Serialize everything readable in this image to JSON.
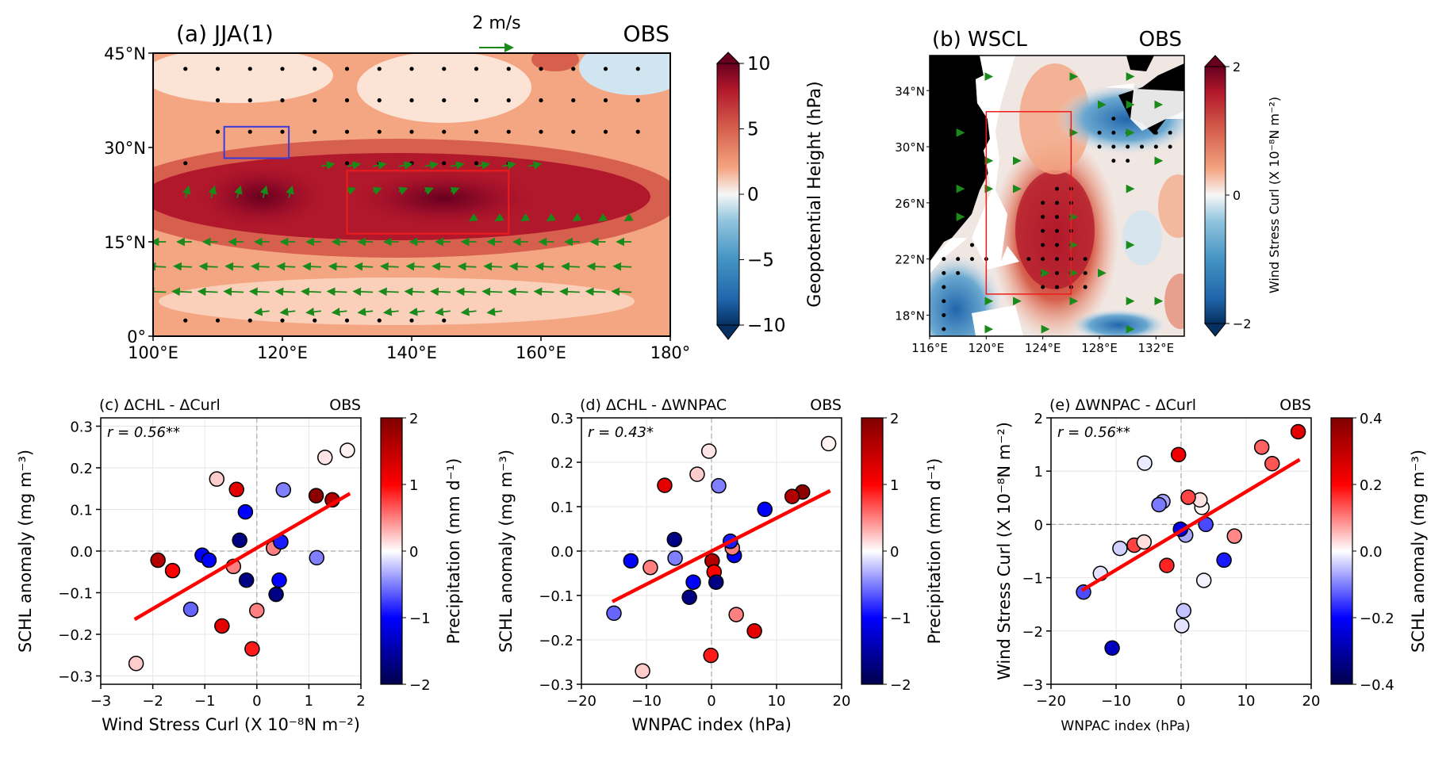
{
  "chart_data": [
    {
      "id": "a",
      "type": "heatmap",
      "title": "(a) JJA(1)",
      "title_right": "OBS",
      "description": "Geopotential height anomaly map with wind vectors and stippling",
      "quiver_key": "2 m/s",
      "xlim": [
        100,
        180
      ],
      "ylim": [
        0,
        45
      ],
      "xticks": [
        "100°E",
        "120°E",
        "140°E",
        "160°E",
        "180°"
      ],
      "xtick_values": [
        100,
        120,
        140,
        160,
        180
      ],
      "yticks": [
        "0°",
        "15°N",
        "30°N",
        "45°N"
      ],
      "ytick_values": [
        0,
        15,
        30,
        45
      ],
      "boxes": [
        {
          "name": "blue-box",
          "color": "#3b3bd9",
          "lon": [
            111,
            121
          ],
          "lat": [
            28.3,
            33.3
          ]
        },
        {
          "name": "red-box",
          "color": "#ee1c1c",
          "lon": [
            130,
            155
          ],
          "lat": [
            16.3,
            26.3
          ]
        }
      ],
      "field_maxima": [
        {
          "lon": 117,
          "lat": 21,
          "value": 10
        },
        {
          "lon": 143,
          "lat": 21,
          "value": 10
        }
      ],
      "colorbar": {
        "label": "Geopotential Height (hPa)",
        "ticks": [
          "10",
          "5",
          "0",
          "−5",
          "−10"
        ],
        "tick_values": [
          10,
          5,
          0,
          -5,
          -10
        ],
        "range": [
          -10,
          10
        ],
        "cmap": "RdBu_r"
      }
    },
    {
      "id": "b",
      "type": "heatmap",
      "title": "(b) WSCL",
      "title_right": "OBS",
      "xlim": [
        116,
        134
      ],
      "ylim": [
        16.5,
        36.5
      ],
      "xticks": [
        "116°E",
        "120°E",
        "124°E",
        "128°E",
        "132°E"
      ],
      "xtick_values": [
        116,
        120,
        124,
        128,
        132
      ],
      "yticks": [
        "18°N",
        "22°N",
        "26°N",
        "30°N",
        "34°N"
      ],
      "ytick_values": [
        18,
        22,
        26,
        30,
        34
      ],
      "boxes": [
        {
          "name": "red-box",
          "color": "#ee1c1c",
          "lon": [
            120,
            126
          ],
          "lat": [
            19.5,
            32.5
          ]
        }
      ],
      "colorbar": {
        "label": "Wind Stress Curl (X 10⁻⁸N m⁻²)",
        "ticks": [
          "2",
          "0",
          "−2"
        ],
        "tick_values": [
          2,
          0,
          -2
        ],
        "range": [
          -2,
          2
        ],
        "cmap": "RdBu_r"
      }
    },
    {
      "id": "c",
      "type": "scatter",
      "title": "(c) ΔCHL - ΔCurl",
      "title_right": "OBS",
      "annotation": "r = 0.56**",
      "xlabel": "Wind Stress Curl (X 10⁻⁸N m⁻²)",
      "ylabel": "SCHL anomaly (mg m⁻³)",
      "xlim": [
        -3,
        2
      ],
      "ylim": [
        -0.32,
        0.32
      ],
      "xticks": [
        "−3",
        "−2",
        "−1",
        "0",
        "1",
        "2"
      ],
      "xtick_values": [
        -3,
        -2,
        -1,
        0,
        1,
        2
      ],
      "yticks": [
        "−0.3",
        "−0.2",
        "−0.1",
        "0.0",
        "0.1",
        "0.2",
        "0.3"
      ],
      "ytick_values": [
        -0.3,
        -0.2,
        -0.1,
        0,
        0.1,
        0.2,
        0.3
      ],
      "x_key": "curl",
      "y_key": "chl",
      "c_key": "precip",
      "fit": {
        "x": [
          -2.32,
          1.76
        ],
        "y": [
          -0.162,
          0.136
        ]
      },
      "grid": true,
      "colorbar": {
        "label": "Precipitation (mm d⁻¹)",
        "ticks": [
          "2",
          "1",
          "0",
          "−1",
          "−2"
        ],
        "tick_values": [
          2,
          1,
          0,
          -1,
          -2
        ],
        "range": [
          -2,
          2
        ],
        "cmap": "seismic"
      }
    },
    {
      "id": "d",
      "type": "scatter",
      "title": "(d) ΔCHL - ΔWNPAC",
      "title_right": "OBS",
      "annotation": "r = 0.43*",
      "xlabel": "WNPAC index (hPa)",
      "ylabel": "SCHL anomaly (mg m⁻³)",
      "xlim": [
        -20,
        20
      ],
      "ylim": [
        -0.3,
        0.3
      ],
      "xticks": [
        "−20",
        "−10",
        "0",
        "10",
        "20"
      ],
      "xtick_values": [
        -20,
        -10,
        0,
        10,
        20
      ],
      "yticks": [
        "−0.3",
        "−0.2",
        "−0.1",
        "0.0",
        "0.1",
        "0.2",
        "0.3"
      ],
      "ytick_values": [
        -0.3,
        -0.2,
        -0.1,
        0,
        0.1,
        0.2,
        0.3
      ],
      "x_key": "wnpac",
      "y_key": "chl",
      "c_key": "precip",
      "fit": {
        "x": [
          -15,
          18
        ],
        "y": [
          -0.112,
          0.134
        ]
      },
      "grid": true,
      "colorbar": {
        "label": "Precipitation (mm d⁻¹)",
        "ticks": [
          "2",
          "1",
          "0",
          "−1",
          "−2"
        ],
        "tick_values": [
          2,
          1,
          0,
          -1,
          -2
        ],
        "range": [
          -2,
          2
        ],
        "cmap": "seismic"
      }
    },
    {
      "id": "e",
      "type": "scatter",
      "title": "(e) ΔWNPAC - ΔCurl",
      "title_right": "OBS",
      "annotation": "r = 0.56**",
      "xlabel": "WNPAC index (hPa)",
      "ylabel": "Wind Stress Curl (X 10⁻⁸N m⁻²)",
      "xlim": [
        -20,
        20
      ],
      "ylim": [
        -3,
        2
      ],
      "xticks": [
        "−20",
        "−10",
        "0",
        "10",
        "20"
      ],
      "xtick_values": [
        -20,
        -10,
        0,
        10,
        20
      ],
      "yticks": [
        "−3",
        "−2",
        "−1",
        "0",
        "1",
        "2"
      ],
      "ytick_values": [
        -3,
        -2,
        -1,
        0,
        1,
        2
      ],
      "x_key": "wnpac",
      "y_key": "curl",
      "c_key": "chl",
      "fit": {
        "x": [
          -15,
          18
        ],
        "y": [
          -1.22,
          1.2
        ]
      },
      "grid": true,
      "colorbar": {
        "label": "SCHL anomaly (mg m⁻³)",
        "ticks": [
          "0.4",
          "0.2",
          "0.0",
          "−0.2",
          "−0.4"
        ],
        "tick_values": [
          0.4,
          0.2,
          0,
          -0.2,
          -0.4
        ],
        "range": [
          -0.4,
          0.4
        ],
        "cmap": "seismic"
      }
    }
  ],
  "samples": [
    {
      "curl": -2.32,
      "chl": -0.27,
      "wnpac": -10.6,
      "precip": 0.2
    },
    {
      "curl": -1.9,
      "chl": -0.022,
      "wnpac": 0.1,
      "precip": 1.6
    },
    {
      "curl": -1.62,
      "chl": -0.047,
      "wnpac": 0.4,
      "precip": 1.0
    },
    {
      "curl": -1.27,
      "chl": -0.14,
      "wnpac": -15.0,
      "precip": -0.6
    },
    {
      "curl": -1.05,
      "chl": -0.01,
      "wnpac": 3.5,
      "precip": -1.0
    },
    {
      "curl": -0.92,
      "chl": -0.022,
      "wnpac": -12.4,
      "precip": -1.0
    },
    {
      "curl": -0.77,
      "chl": 0.173,
      "wnpac": -2.2,
      "precip": 0.2
    },
    {
      "curl": -0.67,
      "chl": -0.18,
      "wnpac": 6.6,
      "precip": 1.2
    },
    {
      "curl": -0.45,
      "chl": -0.037,
      "wnpac": -9.4,
      "precip": 0.5
    },
    {
      "curl": -0.39,
      "chl": 0.148,
      "wnpac": -7.2,
      "precip": 1.2
    },
    {
      "curl": -0.33,
      "chl": 0.026,
      "wnpac": -5.7,
      "precip": -1.7
    },
    {
      "curl": -0.22,
      "chl": 0.094,
      "wnpac": 8.2,
      "precip": -1.0
    },
    {
      "curl": -0.2,
      "chl": -0.07,
      "wnpac": 0.7,
      "precip": -1.7
    },
    {
      "curl": -0.09,
      "chl": -0.235,
      "wnpac": -0.1,
      "precip": 0.9
    },
    {
      "curl": 0.0,
      "chl": -0.143,
      "wnpac": 3.8,
      "precip": 0.5
    },
    {
      "curl": 0.32,
      "chl": 0.007,
      "wnpac": 3.2,
      "precip": 0.5
    },
    {
      "curl": 0.46,
      "chl": 0.022,
      "wnpac": 2.9,
      "precip": -0.9
    },
    {
      "curl": 0.43,
      "chl": -0.07,
      "wnpac": -2.8,
      "precip": -1.0
    },
    {
      "curl": 0.37,
      "chl": -0.104,
      "wnpac": -3.4,
      "precip": -1.7
    },
    {
      "curl": 0.51,
      "chl": 0.147,
      "wnpac": 1.1,
      "precip": -0.5
    },
    {
      "curl": 1.14,
      "chl": 0.133,
      "wnpac": 14.0,
      "precip": 1.9
    },
    {
      "curl": 1.15,
      "chl": -0.016,
      "wnpac": -5.6,
      "precip": -0.5
    },
    {
      "curl": 1.31,
      "chl": 0.225,
      "wnpac": -0.4,
      "precip": 0.1
    },
    {
      "curl": 1.45,
      "chl": 0.123,
      "wnpac": 12.4,
      "precip": 1.6
    },
    {
      "curl": 1.74,
      "chl": 0.242,
      "wnpac": 18.0,
      "precip": 0.05
    }
  ]
}
